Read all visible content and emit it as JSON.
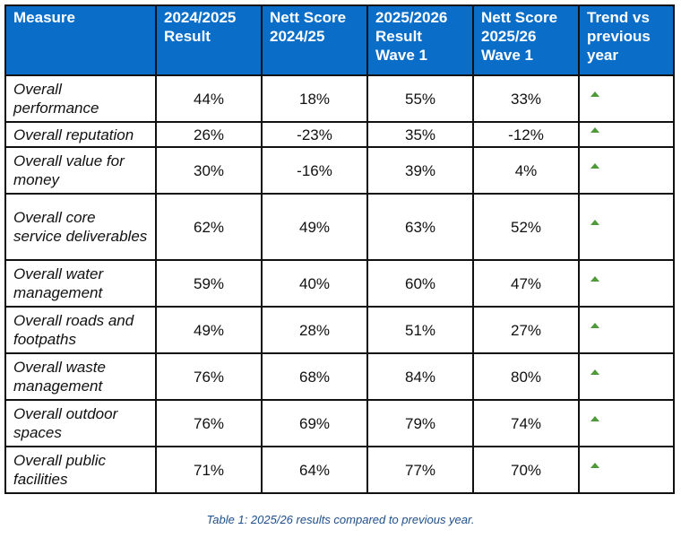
{
  "headers": [
    "Measure",
    "2024/2025 Result",
    "Nett Score 2024/25",
    "2025/2026 Result Wave 1",
    "Nett Score 2025/26 Wave 1",
    "Trend vs previous year"
  ],
  "rows": [
    {
      "measure": "Overall performance",
      "r2425": "44%",
      "n2425": "18%",
      "r2526": "55%",
      "n2526": "33%",
      "trend": "up"
    },
    {
      "measure": "Overall reputation",
      "r2425": "26%",
      "n2425": "-23%",
      "r2526": "35%",
      "n2526": "-12%",
      "trend": "up"
    },
    {
      "measure": "Overall value for money",
      "r2425": "30%",
      "n2425": "-16%",
      "r2526": "39%",
      "n2526": "4%",
      "trend": "up"
    },
    {
      "measure": "Overall core service deliverables",
      "r2425": "62%",
      "n2425": "49%",
      "r2526": "63%",
      "n2526": "52%",
      "trend": "up"
    },
    {
      "measure": "Overall water management",
      "r2425": "59%",
      "n2425": "40%",
      "r2526": "60%",
      "n2526": "47%",
      "trend": "up"
    },
    {
      "measure": "Overall roads and footpaths",
      "r2425": "49%",
      "n2425": "28%",
      "r2526": "51%",
      "n2526": "27%",
      "trend": "up"
    },
    {
      "measure": "Overall waste management",
      "r2425": "76%",
      "n2425": "68%",
      "r2526": "84%",
      "n2526": "80%",
      "trend": "up"
    },
    {
      "measure": "Overall outdoor spaces",
      "r2425": "76%",
      "n2425": "69%",
      "r2526": "79%",
      "n2526": "74%",
      "trend": "up"
    },
    {
      "measure": "Overall public facilities",
      "r2425": "71%",
      "n2425": "64%",
      "r2526": "77%",
      "n2526": "70%",
      "trend": "up"
    }
  ],
  "caption": "Table 1: 2025/26 results compared to previous year.",
  "colors": {
    "header_bg": "#0a6ec9",
    "trend_up": "#4e9a3a",
    "caption": "#1f4e8a"
  }
}
